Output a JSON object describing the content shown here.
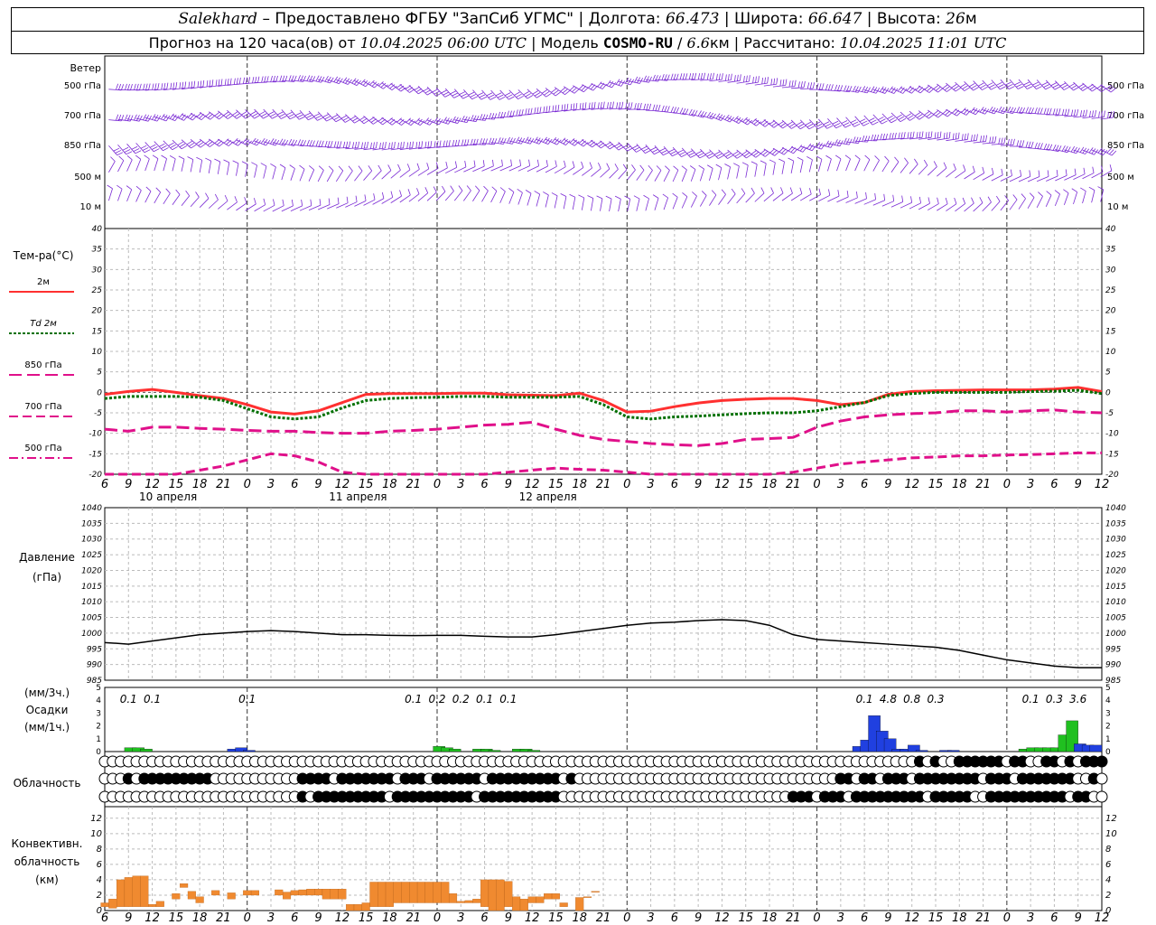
{
  "header": {
    "station": "Salekhard",
    "provided": "Предоставлено ФГБУ \"ЗапСиб УГМС\"",
    "lon_label": "Долгота:",
    "lon": "66.473",
    "lat_label": "Широта:",
    "lat": "66.647",
    "alt_label": "Высота:",
    "alt": "26",
    "alt_unit": "м",
    "forecast_label": "Прогноз на 120 часа(ов) от",
    "forecast_time": "10.04.2025 06:00 UTC",
    "model_label": "Модель",
    "model": "COSMO-RU",
    "model_res": "6.6",
    "model_res_unit": "км",
    "calc_label": "Рассчитано:",
    "calc_time": "10.04.2025 11:01 UTC"
  },
  "wind_panel": {
    "title": "Ветер",
    "levels": [
      "500 гПа",
      "700 гПа",
      "850 гПа",
      "500 м",
      "10 м"
    ]
  },
  "temp_panel": {
    "title": "Тем-ра(°С)",
    "legend": [
      {
        "label": "2м",
        "style": "solid",
        "color": "#ff3030"
      },
      {
        "label": "Td 2м",
        "style": "dotted",
        "color": "#007000"
      },
      {
        "label": "850 гПа",
        "style": "long-dash",
        "color": "#e0108a"
      },
      {
        "label": "700 гПа",
        "style": "dash",
        "color": "#e0108a"
      },
      {
        "label": "500 гПа",
        "style": "dash-dot",
        "color": "#e0108a"
      }
    ],
    "y_ticks": [
      40,
      35,
      30,
      25,
      20,
      15,
      10,
      5,
      0,
      -5,
      -10,
      -15,
      -20
    ]
  },
  "time_axis": {
    "hour_labels": [
      "6",
      "9",
      "12",
      "15",
      "18",
      "21",
      "0",
      "3",
      "6",
      "9",
      "12",
      "15",
      "18",
      "21",
      "0",
      "3",
      "6",
      "9",
      "12",
      "15",
      "18",
      "21",
      "0",
      "3",
      "6",
      "9",
      "12"
    ],
    "dates": [
      "10 апреля",
      "11 апреля",
      "12 апреля"
    ]
  },
  "pressure_panel": {
    "title": "Давление",
    "unit": "(гПа)",
    "y_ticks": [
      1040,
      1035,
      1030,
      1025,
      1020,
      1015,
      1010,
      1005,
      1000,
      995,
      990,
      985
    ]
  },
  "precip_panel": {
    "title": "Осадки",
    "unit3": "(мм/3ч.)",
    "unit1": "(мм/1ч.)",
    "y_ticks": [
      5,
      4,
      3,
      2,
      1,
      0
    ],
    "labels": [
      {
        "hour": 9,
        "text": "0.1"
      },
      {
        "hour": 12,
        "text": "0.1"
      },
      {
        "hour": 24,
        "text": "0.1"
      },
      {
        "hour": 45,
        "text": "0.1"
      },
      {
        "hour": 48,
        "text": "0.2"
      },
      {
        "hour": 51,
        "text": "0.2"
      },
      {
        "hour": 54,
        "text": "0.1"
      },
      {
        "hour": 57,
        "text": "0.1"
      },
      {
        "hour": 102,
        "text": "0.1"
      },
      {
        "hour": 105,
        "text": "4.8"
      },
      {
        "hour": 108,
        "text": "0.8"
      },
      {
        "hour": 111,
        "text": "0.3"
      },
      {
        "hour": 123,
        "text": "0.1"
      },
      {
        "hour": 126,
        "text": "0.3"
      },
      {
        "hour": 129,
        "text": "3.6"
      }
    ]
  },
  "cloud_panel": {
    "title": "Облачность"
  },
  "conv_panel": {
    "title1": "Конвективн.",
    "title2": "облачность",
    "unit": "(км)",
    "y_ticks": [
      12,
      10,
      8,
      6,
      4,
      2,
      0
    ]
  },
  "chart_data": {
    "type": "meteogram",
    "x_unit": "hours since 10.04.2025 00:00 UTC",
    "x_range": [
      6,
      132
    ],
    "series": [
      {
        "name": "2м",
        "panel": "temperature",
        "x": [
          6,
          9,
          12,
          15,
          18,
          21,
          24,
          27,
          30,
          33,
          36,
          39,
          42,
          45,
          48,
          51,
          54,
          57,
          60,
          63,
          66,
          69,
          72,
          75,
          78,
          81,
          84,
          87,
          90,
          93,
          96,
          99,
          102,
          105,
          108,
          111,
          114,
          117,
          120,
          123,
          126,
          129,
          132
        ],
        "y": [
          -0.5,
          0.2,
          0.7,
          0.0,
          -0.8,
          -1.5,
          -3.0,
          -4.8,
          -5.3,
          -4.5,
          -2.5,
          -0.5,
          -0.3,
          -0.3,
          -0.3,
          -0.2,
          -0.2,
          -0.6,
          -0.7,
          -0.8,
          -0.2,
          -2.0,
          -4.8,
          -4.6,
          -3.5,
          -2.6,
          -2.0,
          -1.7,
          -1.5,
          -1.5,
          -2.0,
          -3.0,
          -2.5,
          -0.5,
          0.2,
          0.4,
          0.5,
          0.6,
          0.6,
          0.6,
          0.8,
          1.2,
          0.2
        ]
      },
      {
        "name": "Td 2м",
        "panel": "temperature",
        "x": [
          6,
          9,
          12,
          15,
          18,
          21,
          24,
          27,
          30,
          33,
          36,
          39,
          42,
          45,
          48,
          51,
          54,
          57,
          60,
          63,
          66,
          69,
          72,
          75,
          78,
          81,
          84,
          87,
          90,
          93,
          96,
          99,
          102,
          105,
          108,
          111,
          114,
          117,
          120,
          123,
          126,
          129,
          132
        ],
        "y": [
          -1.5,
          -1.0,
          -1.0,
          -1.0,
          -1.2,
          -2.0,
          -4.0,
          -6.0,
          -6.5,
          -6.0,
          -3.8,
          -2.0,
          -1.5,
          -1.3,
          -1.2,
          -1.0,
          -1.0,
          -1.2,
          -1.2,
          -1.2,
          -1.0,
          -3.0,
          -6.0,
          -6.5,
          -6.0,
          -5.8,
          -5.5,
          -5.2,
          -5.0,
          -5.0,
          -4.5,
          -3.5,
          -2.5,
          -0.8,
          -0.3,
          0.0,
          0.0,
          0.0,
          0.0,
          0.2,
          0.3,
          0.5,
          -0.3
        ]
      },
      {
        "name": "850 гПа",
        "panel": "temperature",
        "x": [
          6,
          9,
          12,
          15,
          18,
          21,
          24,
          27,
          30,
          33,
          36,
          39,
          42,
          45,
          48,
          51,
          54,
          57,
          60,
          63,
          66,
          69,
          72,
          75,
          78,
          81,
          84,
          87,
          90,
          93,
          96,
          99,
          102,
          105,
          108,
          111,
          114,
          117,
          120,
          123,
          126,
          129,
          132
        ],
        "y": [
          -9.0,
          -9.5,
          -8.5,
          -8.5,
          -8.8,
          -9.0,
          -9.3,
          -9.5,
          -9.5,
          -9.8,
          -10.0,
          -10.0,
          -9.5,
          -9.3,
          -9.0,
          -8.5,
          -8.0,
          -7.8,
          -7.3,
          -9.0,
          -10.5,
          -11.5,
          -12.0,
          -12.5,
          -12.8,
          -13.0,
          -12.5,
          -11.5,
          -11.3,
          -11.0,
          -8.5,
          -7.0,
          -6.0,
          -5.5,
          -5.2,
          -5.0,
          -4.5,
          -4.5,
          -4.8,
          -4.5,
          -4.3,
          -4.8,
          -5.0
        ]
      },
      {
        "name": "700 гПа",
        "panel": "temperature",
        "x": [
          6,
          9,
          12,
          15,
          18,
          21,
          24,
          27,
          30,
          33,
          36,
          39,
          42,
          45,
          48,
          51,
          54,
          57,
          60,
          63,
          66,
          69,
          72,
          75,
          78,
          81,
          84,
          87,
          90,
          93,
          96,
          99,
          102,
          105,
          108,
          111,
          114,
          117,
          120,
          123,
          126,
          129,
          132
        ],
        "y": [
          -22,
          -21,
          -20.5,
          -20,
          -19,
          -18,
          -16.5,
          -15,
          -15.5,
          -17,
          -19.5,
          -21,
          -22,
          -22.5,
          -22,
          -21,
          -20,
          -19.5,
          -19,
          -18.5,
          -18.8,
          -19,
          -19.5,
          -20,
          -21.5,
          -22,
          -22,
          -21.5,
          -20.5,
          -19.5,
          -18.5,
          -17.5,
          -17,
          -16.5,
          -16,
          -15.8,
          -15.5,
          -15.5,
          -15.3,
          -15.2,
          -15,
          -14.8,
          -14.8
        ]
      },
      {
        "name": "Давление",
        "panel": "pressure",
        "x": [
          6,
          9,
          12,
          15,
          18,
          21,
          24,
          27,
          30,
          33,
          36,
          39,
          42,
          45,
          48,
          51,
          54,
          57,
          60,
          63,
          66,
          69,
          72,
          75,
          78,
          81,
          84,
          87,
          90,
          93,
          96,
          99,
          102,
          105,
          108,
          111,
          114,
          117,
          120,
          123,
          126,
          129,
          132
        ],
        "y": [
          997,
          996.5,
          997.5,
          998.5,
          999.5,
          1000,
          1000.5,
          1000.8,
          1000.5,
          1000,
          999.5,
          999.5,
          999.3,
          999.2,
          999.3,
          999.3,
          999.0,
          998.8,
          998.8,
          999.5,
          1000.5,
          1001.5,
          1002.5,
          1003.2,
          1003.5,
          1004,
          1004.3,
          1004,
          1002.5,
          999.5,
          998,
          997.5,
          997,
          996.5,
          996,
          995.5,
          994.5,
          993,
          991.5,
          990.5,
          989.5,
          989,
          989
        ]
      },
      {
        "name": "Осадки 3ч",
        "panel": "precipitation",
        "x": [
          9,
          12,
          24,
          45,
          48,
          51,
          54,
          57,
          102,
          105,
          108,
          111,
          123,
          126,
          129
        ],
        "y": [
          0.1,
          0.1,
          0.1,
          0.1,
          0.2,
          0.2,
          0.1,
          0.1,
          0.1,
          4.8,
          0.8,
          0.3,
          0.1,
          0.3,
          3.6
        ]
      },
      {
        "name": "Осадки 1ч",
        "panel": "precipitation",
        "x": [
          9,
          10,
          11,
          22,
          23,
          24,
          48,
          49,
          50,
          53,
          54,
          55,
          58,
          59,
          60,
          101,
          102,
          103,
          104,
          105,
          106,
          107,
          108,
          109,
          112,
          113,
          122,
          123,
          124,
          125,
          126,
          127,
          128,
          129,
          130,
          131
        ],
        "y": [
          0.3,
          0.3,
          0.2,
          0.2,
          0.3,
          0.1,
          0.4,
          0.3,
          0.2,
          0.2,
          0.2,
          0.1,
          0.2,
          0.2,
          0.1,
          0.4,
          0.9,
          2.8,
          1.6,
          1.0,
          0.2,
          0.2,
          0.5,
          0.1,
          0.1,
          0.1,
          0.2,
          0.3,
          0.3,
          0.3,
          0.3,
          1.3,
          2.4,
          0.6,
          0.5,
          0.5
        ],
        "colors": [
          "green",
          "green",
          "green",
          "blue",
          "blue",
          "blue",
          "green",
          "green",
          "green",
          "green",
          "green",
          "green",
          "green",
          "green",
          "green",
          "blue",
          "blue",
          "blue",
          "blue",
          "blue",
          "blue",
          "blue",
          "blue",
          "blue",
          "blue",
          "blue",
          "green",
          "green",
          "green",
          "green",
          "green",
          "green",
          "green",
          "blue",
          "blue",
          "blue"
        ]
      },
      {
        "name": "Конвективн. облачность",
        "panel": "convective",
        "x": [
          6,
          7,
          8,
          9,
          10,
          11,
          12,
          13,
          14,
          15,
          16,
          17,
          18,
          19,
          20,
          21,
          22,
          23,
          24,
          25,
          26,
          27,
          28,
          29,
          30,
          31,
          32,
          33,
          34,
          35,
          36,
          37,
          38,
          39,
          40,
          41,
          42,
          43,
          44,
          45,
          46,
          47,
          48,
          49,
          50,
          51,
          52,
          53,
          54,
          55,
          56,
          57,
          58,
          59,
          60,
          61,
          62,
          63,
          64,
          65,
          66,
          67,
          68,
          69,
          70,
          71,
          72,
          73,
          74,
          75,
          76,
          77,
          78,
          79,
          80,
          81,
          82,
          83,
          84,
          85,
          86,
          87,
          88,
          89,
          90,
          91,
          92,
          93,
          94,
          95,
          96,
          97,
          98,
          99,
          100,
          101,
          102,
          103,
          104,
          105,
          106,
          107,
          108,
          109,
          110,
          111,
          112,
          113,
          114,
          115,
          116,
          117,
          118,
          119,
          120,
          121,
          122,
          123,
          124,
          125,
          126,
          127,
          128,
          129,
          130,
          131,
          132
        ],
        "bottom": [
          0.5,
          0.3,
          0.5,
          0.5,
          0.5,
          0.5,
          0.5,
          0.5,
          0,
          1.5,
          3,
          1.5,
          1,
          0,
          2,
          0,
          1.5,
          0,
          2,
          2,
          0,
          0,
          2,
          1.5,
          2,
          2,
          2,
          2,
          1.5,
          1.5,
          1.5,
          0,
          0,
          0,
          0.5,
          0.5,
          0.5,
          1,
          1,
          1,
          1,
          1,
          1,
          1,
          1,
          1,
          1,
          1,
          0.5,
          0,
          0,
          0.5,
          0,
          0,
          1,
          1,
          1.5,
          1.5,
          0.5,
          0,
          0,
          2,
          2.5,
          0,
          0,
          0,
          0,
          0,
          0,
          0,
          0,
          0,
          0,
          0,
          0,
          0,
          0,
          0,
          0,
          0,
          0,
          0,
          0,
          0,
          0,
          0,
          0,
          0,
          0,
          0,
          0,
          0,
          0,
          0,
          0,
          0,
          0,
          0,
          0,
          0,
          0,
          0,
          0,
          0,
          0,
          0,
          0,
          0,
          0,
          0,
          0,
          0,
          0,
          0,
          0,
          0,
          0,
          0,
          0,
          0,
          0,
          0,
          0,
          0,
          0,
          0,
          0,
          0,
          0
        ],
        "top": [
          1,
          1.5,
          4,
          4.3,
          4.5,
          4.5,
          0.8,
          1.2,
          0,
          2.2,
          3.5,
          2.5,
          1.8,
          0,
          2.6,
          0,
          2.3,
          0,
          2.6,
          2.6,
          0,
          0,
          2.7,
          2.4,
          2.6,
          2.7,
          2.8,
          2.8,
          2.8,
          2.8,
          2.8,
          0.8,
          0.8,
          1,
          3.7,
          3.7,
          3.7,
          3.7,
          3.7,
          3.7,
          3.7,
          3.7,
          3.7,
          3.7,
          2.2,
          1.2,
          1.3,
          1.5,
          4,
          4,
          4,
          3.8,
          1.8,
          1.5,
          1.8,
          1.8,
          2.2,
          2.2,
          1,
          0,
          1.7,
          1.8,
          2.5,
          0,
          0,
          0,
          0,
          0,
          0,
          0,
          0,
          0,
          0,
          0,
          0,
          0,
          0,
          0,
          0,
          0,
          0,
          0,
          0,
          0,
          0,
          0,
          0,
          0,
          0,
          0,
          0,
          0,
          0,
          0,
          0,
          0,
          0,
          0,
          0,
          0,
          0,
          0,
          0,
          0,
          0,
          0,
          0,
          0,
          0,
          0,
          0,
          0,
          0,
          0,
          0,
          0,
          0,
          0,
          0,
          0,
          0,
          0,
          0,
          0,
          0,
          0,
          0,
          0,
          0
        ]
      }
    ]
  }
}
